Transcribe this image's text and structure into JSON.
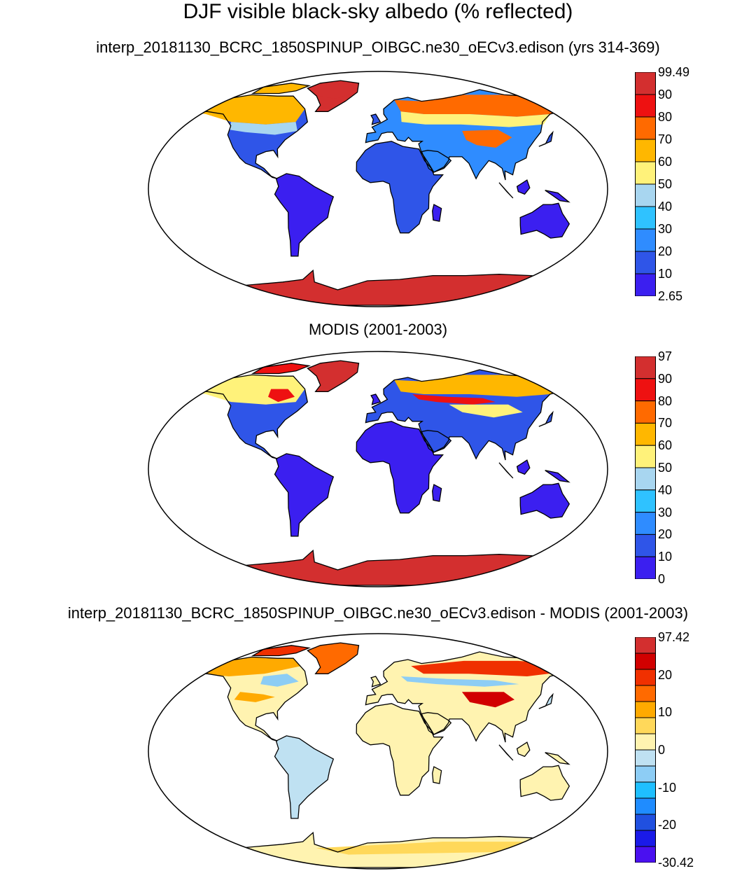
{
  "chart_title": "DJF visible black-sky albedo (% reflected)",
  "chart_data": [
    {
      "type": "heatmap",
      "title": "interp_20181130_BCRC_1850SPINUP_OIBGC.ne30_oECv3.edison (yrs 314-369)",
      "colorbar": {
        "labels": [
          "99.49",
          "90",
          "80",
          "70",
          "60",
          "50",
          "40",
          "30",
          "20",
          "10",
          "2.65"
        ],
        "range": [
          2.65,
          99.49
        ],
        "colors": [
          "#d32f2f",
          "#ee1111",
          "#ff6a00",
          "#ffb700",
          "#fff27a",
          "#a8d6f0",
          "#2fc2ff",
          "#2f8cff",
          "#2f55e8",
          "#3b1ff0"
        ]
      }
    },
    {
      "type": "heatmap",
      "title": "MODIS (2001-2003)",
      "colorbar": {
        "labels": [
          "97",
          "90",
          "80",
          "70",
          "60",
          "50",
          "40",
          "30",
          "20",
          "10",
          "0"
        ],
        "range": [
          0,
          97
        ],
        "colors": [
          "#d32f2f",
          "#ee1111",
          "#ff6a00",
          "#ffb700",
          "#fff27a",
          "#a8d6f0",
          "#2fc2ff",
          "#2f8cff",
          "#2f55e8",
          "#3b1ff0"
        ]
      }
    },
    {
      "type": "heatmap",
      "title": "interp_20181130_BCRC_1850SPINUP_OIBGC.ne30_oECv3.edison - MODIS (2001-2003)",
      "colorbar": {
        "labels": [
          "97.42",
          "",
          "20",
          "",
          "10",
          "",
          "0",
          "",
          "-10",
          "",
          "-20",
          "",
          "-30.42"
        ],
        "range": [
          -30.42,
          97.42
        ],
        "colors": [
          "#d32f2f",
          "#d10000",
          "#f03000",
          "#ff6a00",
          "#ffaa00",
          "#ffd85a",
          "#fff3b0",
          "#bfe1f2",
          "#8dcdf5",
          "#1fbfff",
          "#1f8cff",
          "#2050e0",
          "#1a1ae8",
          "#4a10f0"
        ]
      }
    }
  ]
}
